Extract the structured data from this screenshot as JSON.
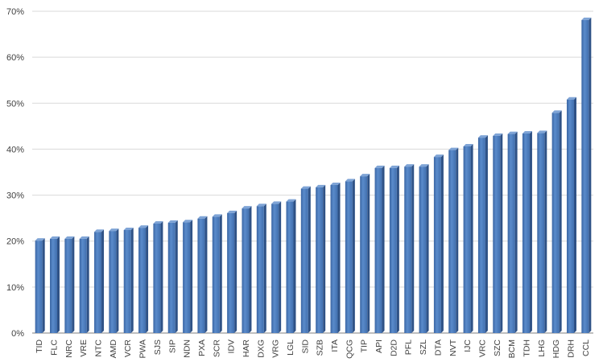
{
  "chart_data": {
    "type": "bar",
    "title": "",
    "xlabel": "",
    "ylabel": "",
    "ylim": [
      0,
      70
    ],
    "y_ticks": [
      "0%",
      "10%",
      "20%",
      "30%",
      "40%",
      "50%",
      "60%",
      "70%"
    ],
    "grid": "horizontal",
    "bar_color": "#4A78B8",
    "categories": [
      "TID",
      "FLC",
      "NRC",
      "VRE",
      "NTC",
      "AMD",
      "VCR",
      "PWA",
      "SJS",
      "SIP",
      "NDN",
      "PXA",
      "SCR",
      "IDV",
      "HAR",
      "DXG",
      "VRG",
      "LGL",
      "SID",
      "SZB",
      "ITA",
      "QCG",
      "TIP",
      "API",
      "D2D",
      "PFL",
      "SZL",
      "DTA",
      "NVT",
      "IJC",
      "VRC",
      "SZC",
      "BCM",
      "TDH",
      "LHG",
      "HDG",
      "DRH",
      "CCL"
    ],
    "values": [
      20.1,
      20.5,
      20.5,
      20.5,
      22.0,
      22.2,
      22.4,
      22.9,
      23.8,
      24.0,
      24.1,
      24.9,
      25.3,
      26.1,
      27.1,
      27.6,
      28.1,
      28.6,
      31.4,
      31.7,
      32.2,
      33.0,
      34.1,
      35.9,
      35.9,
      36.2,
      36.2,
      38.3,
      39.8,
      40.6,
      42.5,
      42.9,
      43.3,
      43.4,
      43.5,
      47.9,
      50.8,
      68.1
    ]
  }
}
